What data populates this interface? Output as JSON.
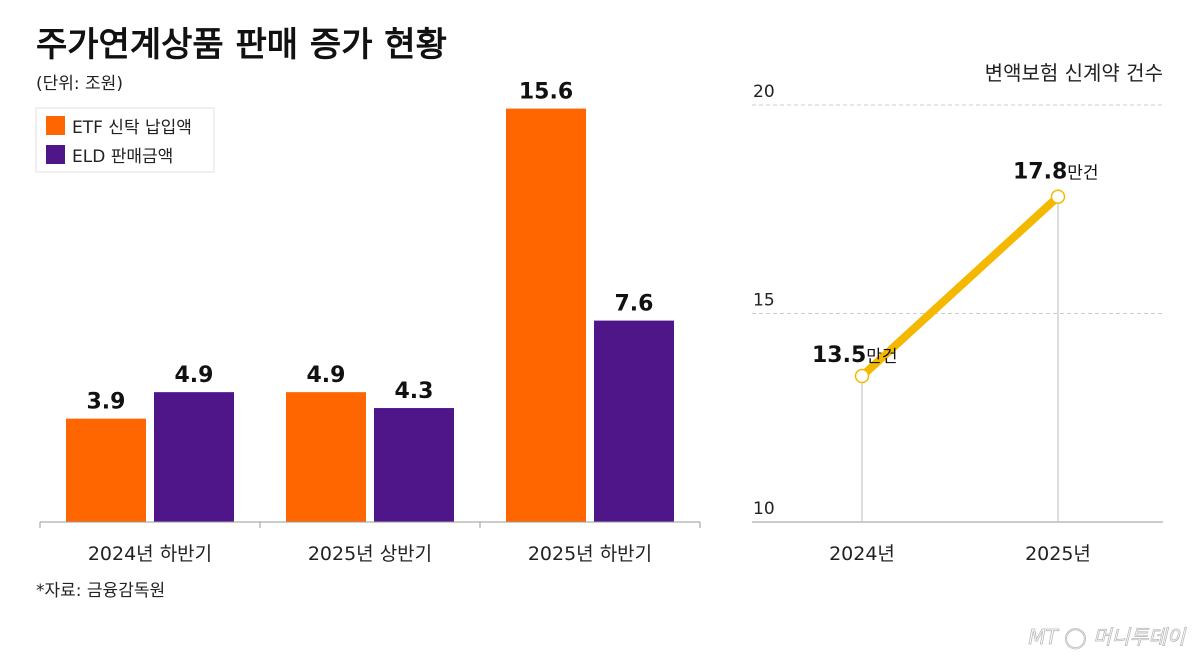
{
  "title": "주가연계상품 판매 증가 현황",
  "unit": "(단위: 조원)",
  "source": "*자료: 금융감독원",
  "logo": "MT 머니투데이",
  "chart_data": [
    {
      "type": "bar",
      "categories": [
        "2024년 하반기",
        "2025년 상반기",
        "2025년 하반기"
      ],
      "series": [
        {
          "name": "ETF 신탁 납입액",
          "color": "#FF6600",
          "values": [
            3.9,
            4.9,
            15.6
          ]
        },
        {
          "name": "ELD 판매금액",
          "color": "#4E1689",
          "values": [
            4.9,
            4.3,
            7.6
          ]
        }
      ],
      "ylim": [
        0,
        16
      ],
      "legend": "top-left",
      "grid": false
    },
    {
      "type": "line",
      "title": "변액보험 신계약 건수",
      "categories": [
        "2024년",
        "2025년"
      ],
      "values": [
        13.5,
        17.8
      ],
      "value_suffix": "만건",
      "yticks": [
        "10",
        "15",
        "20"
      ],
      "ylim": [
        10,
        20
      ],
      "color": "#F5B800",
      "grid": true
    }
  ]
}
